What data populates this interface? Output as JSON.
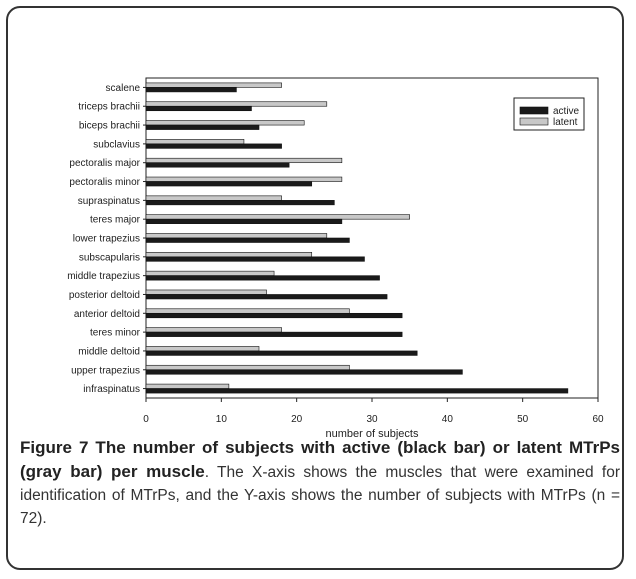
{
  "chart_data": {
    "type": "bar",
    "orientation": "horizontal",
    "categories": [
      "scalene",
      "triceps brachii",
      "biceps brachii",
      "subclavius",
      "pectoralis major",
      "pectoralis minor",
      "supraspinatus",
      "teres major",
      "lower trapezius",
      "subscapularis",
      "middle trapezius",
      "posterior deltoid",
      "anterior deltoid",
      "teres minor",
      "middle deltoid",
      "upper trapezius",
      "infraspinatus"
    ],
    "series": [
      {
        "name": "active",
        "color": "#1a1a1a",
        "values": [
          12,
          14,
          15,
          18,
          19,
          22,
          25,
          26,
          27,
          29,
          31,
          32,
          34,
          34,
          36,
          42,
          56
        ]
      },
      {
        "name": "latent",
        "color": "#c8c8c8",
        "values": [
          18,
          24,
          21,
          13,
          26,
          26,
          18,
          35,
          24,
          22,
          17,
          16,
          27,
          18,
          15,
          27,
          11
        ]
      }
    ],
    "xlim": [
      0,
      60
    ],
    "xticks": [
      0,
      10,
      20,
      30,
      40,
      50,
      60
    ],
    "xlabel": "number of subjects",
    "ylabel": "",
    "grid": false,
    "legend_position": "top-right"
  },
  "caption": {
    "bold_text": "Figure 7 The number of subjects with active (black bar) or latent MTrPs (gray bar) per muscle",
    "body_text": ". The X-axis shows the muscles that were examined for identification of MTrPs, and the Y-axis shows the number of subjects with MTrPs (n = 72)."
  }
}
